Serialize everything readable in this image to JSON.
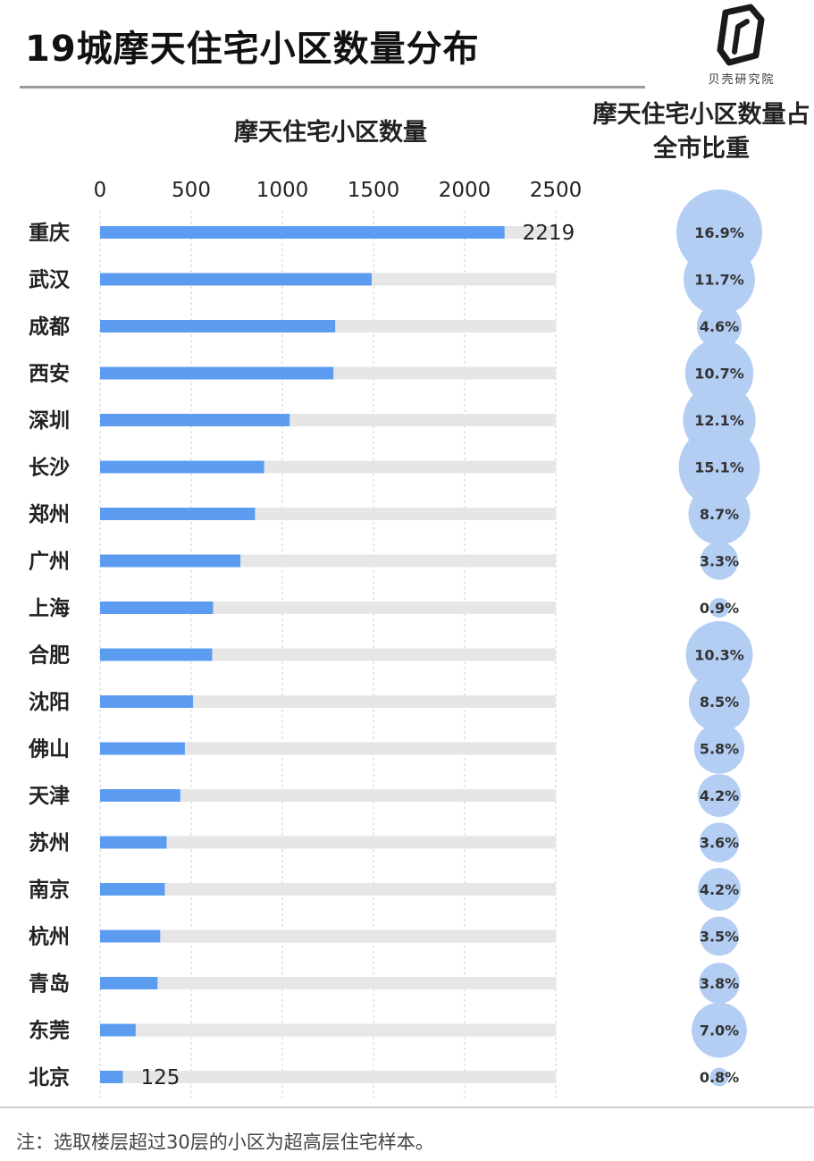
{
  "title": "19城摩天住宅小区数量分布",
  "logo_text": "贝壳研究院",
  "note": "注：选取楼层超过30层的小区为超高层住宅样本。",
  "colors": {
    "bar": "#5b9cf0",
    "track": "#e6e6e6",
    "bubble": "#b3cdf3",
    "gridline": "#cfcfcf"
  },
  "chart_data": {
    "type": "bar",
    "orientation": "horizontal",
    "title": "摩天住宅小区数量",
    "secondary_title": "摩天住宅小区数量占全市比重",
    "xlim": [
      0,
      2500
    ],
    "ticks": [
      "0",
      "500",
      "1000",
      "1500",
      "2000",
      "2500"
    ],
    "categories": [
      "重庆",
      "武汉",
      "成都",
      "西安",
      "深圳",
      "长沙",
      "郑州",
      "广州",
      "上海",
      "合肥",
      "沈阳",
      "佛山",
      "天津",
      "苏州",
      "南京",
      "杭州",
      "青岛",
      "东莞",
      "北京"
    ],
    "values": [
      2219,
      1490,
      1290,
      1280,
      1040,
      900,
      850,
      770,
      620,
      615,
      510,
      465,
      440,
      365,
      355,
      330,
      315,
      195,
      125
    ],
    "data_labels": {
      "0": "2219",
      "18": "125"
    },
    "share_labels": [
      "16.9%",
      "11.7%",
      "4.6%",
      "10.7%",
      "12.1%",
      "15.1%",
      "8.7%",
      "3.3%",
      "0.9%",
      "10.3%",
      "8.5%",
      "5.8%",
      "4.2%",
      "3.6%",
      "4.2%",
      "3.5%",
      "3.8%",
      "7.0%",
      "0.8%"
    ],
    "share_values": [
      16.9,
      11.7,
      4.6,
      10.7,
      12.1,
      15.1,
      8.7,
      3.3,
      0.9,
      10.3,
      8.5,
      5.8,
      4.2,
      3.6,
      4.2,
      3.5,
      3.8,
      7.0,
      0.8
    ]
  }
}
